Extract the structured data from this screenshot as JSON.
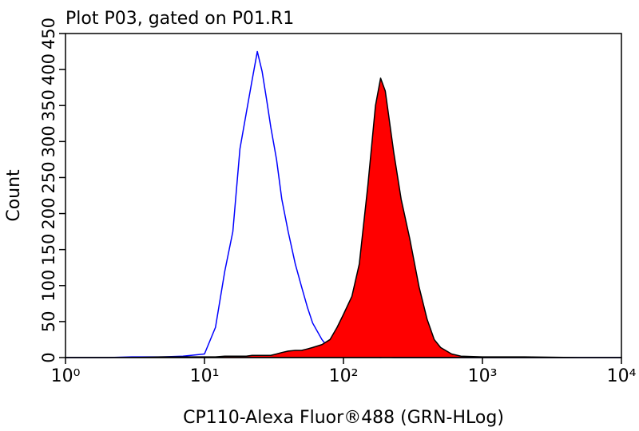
{
  "chart_data": {
    "type": "histogram-overlay",
    "title": "Plot P03, gated on P01.R1",
    "x_label": "CP110-Alexa Fluor®488 (GRN-HLog)",
    "y_label": "Count",
    "xscale": "log",
    "xlim": [
      1,
      10000
    ],
    "ylim": [
      0,
      450
    ],
    "xticks": [
      {
        "value": 1,
        "label": "10⁰"
      },
      {
        "value": 10,
        "label": "10¹"
      },
      {
        "value": 100,
        "label": "10²"
      },
      {
        "value": 1000,
        "label": "10³"
      },
      {
        "value": 10000,
        "label": "10⁴"
      }
    ],
    "yticks": [
      0,
      50,
      100,
      150,
      200,
      250,
      300,
      350,
      400,
      450
    ],
    "x": [
      1,
      2,
      3,
      5,
      7,
      10,
      12,
      14,
      16,
      18,
      20,
      22,
      24,
      26,
      28,
      30,
      33,
      36,
      40,
      45,
      50,
      55,
      60,
      70,
      80,
      90,
      100,
      115,
      130,
      150,
      170,
      185,
      200,
      230,
      260,
      300,
      350,
      400,
      450,
      500,
      600,
      700,
      1000,
      2000,
      5000,
      10000
    ],
    "series": [
      {
        "color": "#0000ff",
        "fill": false,
        "values": [
          0,
          0,
          1,
          1,
          2,
          5,
          42,
          120,
          175,
          290,
          340,
          385,
          425,
          397,
          358,
          320,
          275,
          220,
          175,
          130,
          98,
          70,
          48,
          25,
          11,
          5,
          2,
          2,
          1,
          1,
          1,
          0,
          1,
          0,
          0,
          0,
          0,
          0,
          0,
          0,
          0,
          0,
          0,
          0,
          0,
          0
        ]
      },
      {
        "color": "#ff0000",
        "edgecolor": "#000000",
        "fill": true,
        "values": [
          0,
          0,
          0,
          1,
          1,
          1,
          1,
          2,
          2,
          2,
          2,
          3,
          3,
          3,
          3,
          3,
          5,
          7,
          9,
          10,
          10,
          12,
          14,
          18,
          25,
          42,
          60,
          85,
          130,
          240,
          350,
          388,
          370,
          285,
          220,
          165,
          98,
          53,
          25,
          14,
          5,
          2,
          1,
          1,
          0,
          0
        ]
      }
    ]
  }
}
